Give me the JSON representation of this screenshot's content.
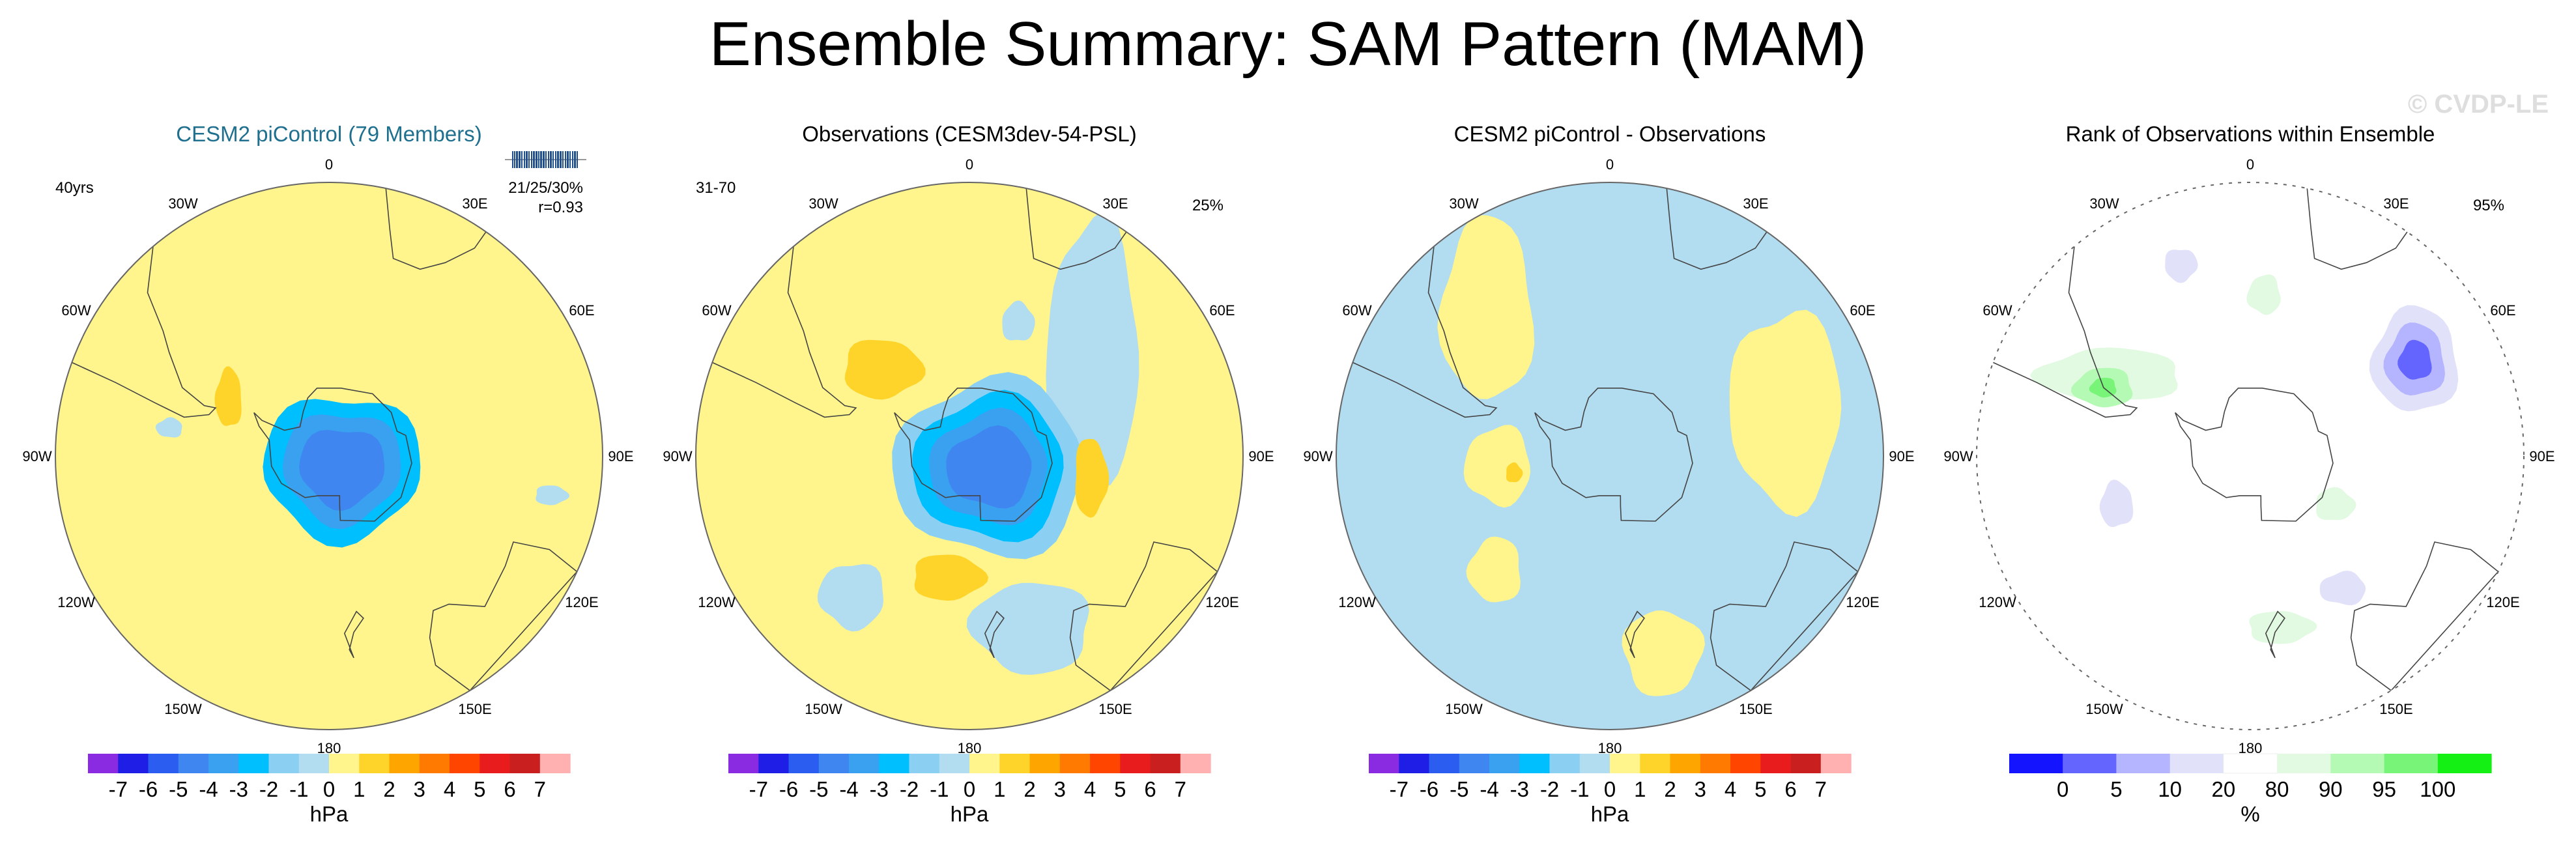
{
  "title": "Ensemble Summary: SAM Pattern (MAM)",
  "watermark": "© CVDP-LE",
  "colors": {
    "land_outline": "#444444",
    "ocean_background": "#ffffff",
    "model_title": "#1f6f8f"
  },
  "chart_data": [
    {
      "type": "heatmap",
      "projection": "south-polar-stereographic",
      "title": "CESM2 piControl (79 Members)",
      "left_label": "40yrs",
      "right_label_lines": [
        "21/25/30%",
        "r=0.93"
      ],
      "has_member_spread_strip": true,
      "lon_labels": [
        "0",
        "30E",
        "60E",
        "90E",
        "120E",
        "150E",
        "180",
        "150W",
        "120W",
        "90W",
        "60W",
        "30W"
      ],
      "colorbar": {
        "units": "hPa",
        "tick_labels": [
          "-7",
          "-6",
          "-5",
          "-4",
          "-3",
          "-2",
          "-1",
          "0",
          "1",
          "2",
          "3",
          "4",
          "5",
          "6",
          "7"
        ],
        "colors": [
          "#8a2be2",
          "#1e1ee6",
          "#2b5ef0",
          "#3f86f0",
          "#3aa0f0",
          "#00bfff",
          "#8bd0f2",
          "#b2dcef",
          "#fff58c",
          "#ffd42a",
          "#ffa500",
          "#ff7a00",
          "#ff4500",
          "#e81c1c",
          "#c91f1f",
          "#ffb0b0"
        ]
      },
      "field": {
        "background_value": 0.5,
        "features": [
          {
            "lat": -85,
            "lon": 130,
            "rx": 0.24,
            "ry": 0.22,
            "value": -2.5
          },
          {
            "lat": -85,
            "lon": 130,
            "rx": 0.18,
            "ry": 0.17,
            "value": -3.5
          },
          {
            "lat": -85,
            "lon": 130,
            "rx": 0.13,
            "ry": 0.12,
            "value": -4.5
          },
          {
            "lat": -57,
            "lon": -60,
            "rx": 0.04,
            "ry": 0.09,
            "value": 1.5
          },
          {
            "lat": -30,
            "lon": 100,
            "rx": 0.05,
            "ry": 0.03,
            "value": -0.5
          },
          {
            "lat": -45,
            "lon": -80,
            "rx": 0.04,
            "ry": 0.03,
            "value": -0.5
          }
        ]
      }
    },
    {
      "type": "heatmap",
      "projection": "south-polar-stereographic",
      "title": "Observations (CESM3dev-54-PSL)",
      "left_label": "31-70",
      "right_label_lines": [
        "25%"
      ],
      "has_member_spread_strip": false,
      "lon_labels": [
        "0",
        "30E",
        "60E",
        "90E",
        "120E",
        "150E",
        "180",
        "150W",
        "120W",
        "90W",
        "60W",
        "30W"
      ],
      "colorbar": {
        "units": "hPa",
        "tick_labels": [
          "-7",
          "-6",
          "-5",
          "-4",
          "-3",
          "-2",
          "-1",
          "0",
          "1",
          "2",
          "3",
          "4",
          "5",
          "6",
          "7"
        ],
        "colors": [
          "#8a2be2",
          "#1e1ee6",
          "#2b5ef0",
          "#3f86f0",
          "#3aa0f0",
          "#00bfff",
          "#8bd0f2",
          "#b2dcef",
          "#fff58c",
          "#ffd42a",
          "#ffa500",
          "#ff7a00",
          "#ff4500",
          "#e81c1c",
          "#c91f1f",
          "#ffb0b0"
        ]
      },
      "field": {
        "background_value": 0.5,
        "features": [
          {
            "lat": -45,
            "lon": 50,
            "rx": 0.14,
            "ry": 0.4,
            "value": -0.5
          },
          {
            "lat": -40,
            "lon": 160,
            "rx": 0.18,
            "ry": 0.14,
            "value": -0.5
          },
          {
            "lat": -40,
            "lon": -140,
            "rx": 0.1,
            "ry": 0.1,
            "value": -0.5
          },
          {
            "lat": -50,
            "lon": 20,
            "rx": 0.05,
            "ry": 0.06,
            "value": -0.5
          },
          {
            "lat": -83,
            "lon": 120,
            "rx": 0.29,
            "ry": 0.27,
            "value": -1.5
          },
          {
            "lat": -83,
            "lon": 120,
            "rx": 0.23,
            "ry": 0.22,
            "value": -2.5
          },
          {
            "lat": -83,
            "lon": 120,
            "rx": 0.18,
            "ry": 0.17,
            "value": -3.5
          },
          {
            "lat": -83,
            "lon": 120,
            "rx": 0.13,
            "ry": 0.12,
            "value": -4.5
          },
          {
            "lat": -55,
            "lon": -45,
            "rx": 0.12,
            "ry": 0.09,
            "value": 1.5
          },
          {
            "lat": -55,
            "lon": 100,
            "rx": 0.05,
            "ry": 0.12,
            "value": 1.5
          },
          {
            "lat": -55,
            "lon": -170,
            "rx": 0.11,
            "ry": 0.07,
            "value": 1.5
          }
        ]
      }
    },
    {
      "type": "heatmap",
      "projection": "south-polar-stereographic",
      "title": "CESM2 piControl - Observations",
      "left_label": "",
      "right_label_lines": [],
      "has_member_spread_strip": false,
      "lon_labels": [
        "0",
        "30E",
        "60E",
        "90E",
        "120E",
        "150E",
        "180",
        "150W",
        "120W",
        "90W",
        "60W",
        "30W"
      ],
      "colorbar": {
        "units": "hPa",
        "tick_labels": [
          "-7",
          "-6",
          "-5",
          "-4",
          "-3",
          "-2",
          "-1",
          "0",
          "1",
          "2",
          "3",
          "4",
          "5",
          "6",
          "7"
        ],
        "colors": [
          "#8a2be2",
          "#1e1ee6",
          "#2b5ef0",
          "#3f86f0",
          "#3aa0f0",
          "#00bfff",
          "#8bd0f2",
          "#b2dcef",
          "#fff58c",
          "#ffd42a",
          "#ffa500",
          "#ff7a00",
          "#ff4500",
          "#e81c1c",
          "#c91f1f",
          "#ffb0b0"
        ]
      },
      "field": {
        "background_value": -0.5,
        "features": [
          {
            "lat": -38,
            "lon": -40,
            "rx": 0.14,
            "ry": 0.28,
            "value": 0.5
          },
          {
            "lat": -40,
            "lon": 75,
            "rx": 0.17,
            "ry": 0.3,
            "value": 0.5
          },
          {
            "lat": -35,
            "lon": 165,
            "rx": 0.12,
            "ry": 0.13,
            "value": 0.5
          },
          {
            "lat": -58,
            "lon": -95,
            "rx": 0.1,
            "ry": 0.12,
            "value": 0.5
          },
          {
            "lat": -45,
            "lon": -135,
            "rx": 0.08,
            "ry": 0.1,
            "value": 0.5
          },
          {
            "lat": -62,
            "lon": -100,
            "rx": 0.025,
            "ry": 0.03,
            "value": 1.5
          }
        ]
      }
    },
    {
      "type": "heatmap",
      "projection": "south-polar-stereographic",
      "title": "Rank of Observations within Ensemble",
      "left_label": "",
      "right_label_lines": [
        "95%"
      ],
      "has_member_spread_strip": false,
      "lon_labels": [
        "0",
        "30E",
        "60E",
        "90E",
        "120E",
        "150E",
        "180",
        "150W",
        "120W",
        "90W",
        "60W",
        "30W"
      ],
      "colorbar": {
        "units": "%",
        "tick_labels": [
          "0",
          "5",
          "10",
          "20",
          "80",
          "90",
          "95",
          "100"
        ],
        "colors": [
          "#1414ff",
          "#6464ff",
          "#b4b4ff",
          "#e1e1fa",
          "#ffffff",
          "#e1fae1",
          "#b4fab4",
          "#78f578",
          "#14f014"
        ]
      },
      "field": {
        "background_value": 50,
        "features": [
          {
            "lat": -38,
            "lon": 60,
            "rx": 0.13,
            "ry": 0.16,
            "value": 15
          },
          {
            "lat": -38,
            "lon": 60,
            "rx": 0.09,
            "ry": 0.11,
            "value": 7
          },
          {
            "lat": -38,
            "lon": 60,
            "rx": 0.05,
            "ry": 0.06,
            "value": 2
          },
          {
            "lat": -45,
            "lon": -60,
            "rx": 0.22,
            "ry": 0.08,
            "value": 85
          },
          {
            "lat": -45,
            "lon": -65,
            "rx": 0.09,
            "ry": 0.06,
            "value": 92
          },
          {
            "lat": -45,
            "lon": -65,
            "rx": 0.04,
            "ry": 0.03,
            "value": 97
          },
          {
            "lat": -35,
            "lon": -20,
            "rx": 0.05,
            "ry": 0.05,
            "value": 15
          },
          {
            "lat": -42,
            "lon": 170,
            "rx": 0.1,
            "ry": 0.05,
            "value": 85
          },
          {
            "lat": -45,
            "lon": 145,
            "rx": 0.07,
            "ry": 0.05,
            "value": 15
          },
          {
            "lat": -50,
            "lon": -110,
            "rx": 0.05,
            "ry": 0.07,
            "value": 15
          },
          {
            "lat": -62,
            "lon": 120,
            "rx": 0.06,
            "ry": 0.05,
            "value": 85
          },
          {
            "lat": -45,
            "lon": 5,
            "rx": 0.05,
            "ry": 0.06,
            "value": 85
          }
        ]
      }
    }
  ]
}
